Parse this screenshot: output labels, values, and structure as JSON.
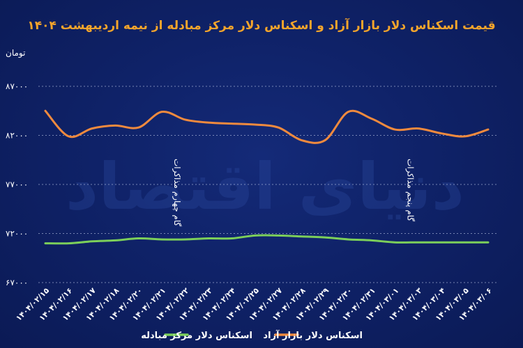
{
  "chart_data": {
    "type": "line",
    "title": "قیمت اسکناس دلار بازار آزاد و اسکناس دلار مرکز مبادله از نیمه اردیبهشت ۱۴۰۴",
    "ylabel": "تومان",
    "ylim": [
      67000,
      87000
    ],
    "yticks": [
      "۸۷۰۰۰",
      "۸۲۰۰۰",
      "۷۷۰۰۰",
      "۷۲۰۰۰",
      "۶۷۰۰۰"
    ],
    "ytick_values": [
      87000,
      82000,
      77000,
      72000,
      67000
    ],
    "categories": [
      "۱۴۰۴/۰۲/۱۵",
      "۱۴۰۴/۰۲/۱۶",
      "۱۴۰۴/۰۲/۱۷",
      "۱۴۰۴/۰۲/۱۸",
      "۱۴۰۴/۰۲/۲۰",
      "۱۴۰۴/۰۲/۲۱",
      "۱۴۰۴/۰۲/۲۲",
      "۱۴۰۴/۰۲/۲۳",
      "۱۴۰۴/۰۲/۲۴",
      "۱۴۰۴/۰۲/۲۵",
      "۱۴۰۴/۰۲/۲۷",
      "۱۴۰۴/۰۲/۲۸",
      "۱۴۰۴/۰۲/۲۹",
      "۱۴۰۴/۰۲/۳۰",
      "۱۴۰۴/۰۲/۳۱",
      "۱۴۰۴/۰۳/۰۱",
      "۱۴۰۴/۰۳/۰۳",
      "۱۴۰۴/۰۳/۰۴",
      "۱۴۰۴/۰۳/۰۵",
      "۱۴۰۴/۰۳/۰۶"
    ],
    "series": [
      {
        "name": "اسکناس دلار بازار آزاد",
        "color": "#f08a3e",
        "values": [
          84500,
          81900,
          82700,
          83000,
          82800,
          84400,
          83600,
          83300,
          83200,
          83100,
          82800,
          81500,
          81500,
          84400,
          83700,
          82600,
          82700,
          82200,
          81900,
          82600
        ]
      },
      {
        "name": "اسکناس دلار مرکز مبادله",
        "color": "#7ccf5a",
        "values": [
          71000,
          71000,
          71200,
          71300,
          71500,
          71400,
          71400,
          71500,
          71500,
          71800,
          71800,
          71700,
          71600,
          71400,
          71300,
          71100,
          71100,
          71100,
          71100,
          71100
        ]
      }
    ],
    "annotations": [
      {
        "text": "گام چهارم مذاکرات",
        "category_index": 5
      },
      {
        "text": "گام پنجم مذاکرات",
        "category_index": 15
      }
    ],
    "grid": true,
    "legend_position": "bottom"
  },
  "watermark": "دنیای اقتصاد"
}
